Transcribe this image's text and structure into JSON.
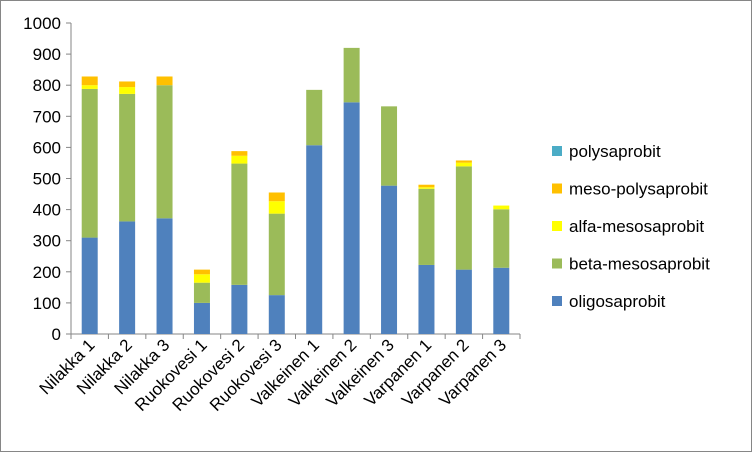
{
  "chart_data": {
    "type": "bar",
    "stacked": true,
    "title": "",
    "xlabel": "",
    "ylabel": "",
    "ylim": [
      0,
      1000
    ],
    "y_ticks": [
      0,
      100,
      200,
      300,
      400,
      500,
      600,
      700,
      800,
      900,
      1000
    ],
    "grid": false,
    "legend_position": "right",
    "categories": [
      "Nilakka 1",
      "Nilakka 2",
      "Nilakka 3",
      "Ruokovesi 1",
      "Ruokovesi 2",
      "Ruokovesi 3",
      "Valkeinen 1",
      "Valkeinen 2",
      "Valkeinen 3",
      "Varpanen 1",
      "Varpanen 2",
      "Varpanen 3"
    ],
    "series": [
      {
        "name": "oligosaprobit",
        "color": "#4F81BD",
        "values": [
          310,
          362,
          372,
          100,
          158,
          125,
          607,
          745,
          477,
          222,
          207,
          213
        ]
      },
      {
        "name": "beta-mesosaprobit",
        "color": "#9BBB59",
        "values": [
          478,
          410,
          428,
          65,
          390,
          262,
          178,
          175,
          255,
          245,
          332,
          188
        ]
      },
      {
        "name": "alfa-mesosaprobit",
        "color": "#FFFF00",
        "values": [
          12,
          22,
          0,
          27,
          25,
          40,
          0,
          0,
          0,
          5,
          12,
          12
        ]
      },
      {
        "name": "meso-polysaprobit",
        "color": "#FFC000",
        "values": [
          28,
          18,
          28,
          15,
          15,
          28,
          0,
          0,
          0,
          8,
          7,
          0
        ]
      },
      {
        "name": "polysaprobit",
        "color": "#4BACC6",
        "values": [
          0,
          0,
          0,
          0,
          0,
          0,
          0,
          0,
          0,
          0,
          0,
          0
        ]
      }
    ]
  }
}
